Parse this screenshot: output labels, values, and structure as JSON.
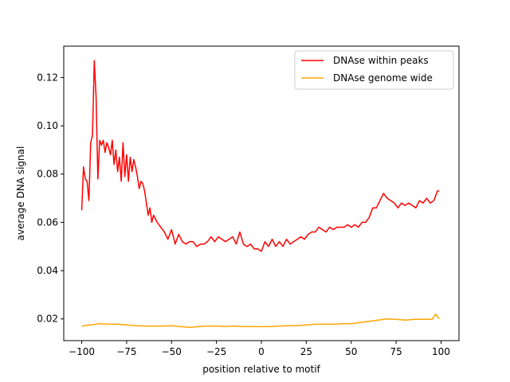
{
  "chart_data": {
    "type": "line",
    "xlabel": "position relative to motif",
    "ylabel": "average DNA signal",
    "xlim": [
      -110,
      110
    ],
    "ylim": [
      0.011,
      0.133
    ],
    "xticks": [
      -100,
      -75,
      -50,
      -25,
      0,
      25,
      50,
      75,
      100
    ],
    "xtick_labels": [
      "−100",
      "−75",
      "−50",
      "−25",
      "0",
      "25",
      "50",
      "75",
      "100"
    ],
    "yticks": [
      0.02,
      0.04,
      0.06,
      0.08,
      0.1,
      0.12
    ],
    "ytick_labels": [
      "0.02",
      "0.04",
      "0.06",
      "0.08",
      "0.10",
      "0.12"
    ],
    "legend_position": "top-right",
    "grid": false,
    "series": [
      {
        "name": "DNAse within peaks",
        "color": "#ff0000",
        "x": [
          -100,
          -99,
          -98,
          -97,
          -96,
          -95,
          -94,
          -93,
          -92,
          -91,
          -90,
          -89,
          -88,
          -87,
          -86,
          -85,
          -84,
          -83,
          -82,
          -81,
          -80,
          -79,
          -78,
          -77,
          -76,
          -75,
          -74,
          -73,
          -72,
          -71,
          -70,
          -69,
          -68,
          -67,
          -66,
          -65,
          -64,
          -63,
          -62,
          -61,
          -60,
          -58,
          -56,
          -54,
          -52,
          -50,
          -48,
          -46,
          -44,
          -42,
          -40,
          -38,
          -36,
          -34,
          -32,
          -30,
          -28,
          -26,
          -24,
          -22,
          -20,
          -18,
          -16,
          -14,
          -12,
          -10,
          -8,
          -6,
          -4,
          -2,
          0,
          2,
          4,
          6,
          8,
          10,
          12,
          14,
          16,
          18,
          20,
          22,
          24,
          26,
          28,
          30,
          32,
          34,
          36,
          38,
          40,
          42,
          44,
          46,
          48,
          50,
          52,
          54,
          56,
          58,
          60,
          62,
          64,
          66,
          68,
          70,
          72,
          74,
          76,
          78,
          80,
          82,
          84,
          86,
          88,
          90,
          92,
          94,
          96,
          98,
          99
        ],
        "y": [
          0.065,
          0.083,
          0.078,
          0.077,
          0.069,
          0.093,
          0.096,
          0.127,
          0.112,
          0.078,
          0.094,
          0.092,
          0.094,
          0.089,
          0.093,
          0.091,
          0.088,
          0.094,
          0.084,
          0.09,
          0.081,
          0.087,
          0.077,
          0.093,
          0.079,
          0.088,
          0.077,
          0.087,
          0.081,
          0.086,
          0.083,
          0.079,
          0.074,
          0.077,
          0.076,
          0.073,
          0.068,
          0.063,
          0.066,
          0.06,
          0.063,
          0.06,
          0.058,
          0.056,
          0.053,
          0.057,
          0.051,
          0.055,
          0.052,
          0.051,
          0.052,
          0.052,
          0.05,
          0.051,
          0.051,
          0.052,
          0.054,
          0.052,
          0.054,
          0.053,
          0.052,
          0.053,
          0.054,
          0.051,
          0.056,
          0.051,
          0.05,
          0.051,
          0.049,
          0.049,
          0.048,
          0.052,
          0.05,
          0.053,
          0.05,
          0.052,
          0.05,
          0.053,
          0.051,
          0.052,
          0.053,
          0.054,
          0.053,
          0.055,
          0.056,
          0.056,
          0.058,
          0.057,
          0.056,
          0.058,
          0.057,
          0.058,
          0.058,
          0.058,
          0.059,
          0.058,
          0.059,
          0.058,
          0.06,
          0.06,
          0.062,
          0.066,
          0.066,
          0.069,
          0.072,
          0.07,
          0.069,
          0.068,
          0.066,
          0.068,
          0.067,
          0.068,
          0.067,
          0.066,
          0.069,
          0.068,
          0.07,
          0.068,
          0.069,
          0.073,
          0.073
        ]
      },
      {
        "name": "DNAse genome wide",
        "color": "#ffa500",
        "x": [
          -100,
          -95,
          -90,
          -85,
          -80,
          -75,
          -70,
          -65,
          -60,
          -55,
          -50,
          -45,
          -40,
          -35,
          -30,
          -25,
          -20,
          -15,
          -10,
          -5,
          0,
          5,
          10,
          15,
          20,
          25,
          30,
          35,
          40,
          45,
          50,
          55,
          60,
          65,
          70,
          75,
          80,
          85,
          90,
          95,
          97,
          99
        ],
        "y": [
          0.017,
          0.0175,
          0.018,
          0.0178,
          0.0178,
          0.0175,
          0.0172,
          0.017,
          0.017,
          0.017,
          0.0172,
          0.0168,
          0.0165,
          0.0168,
          0.017,
          0.017,
          0.0168,
          0.017,
          0.0168,
          0.0168,
          0.0168,
          0.0168,
          0.017,
          0.0172,
          0.0172,
          0.0175,
          0.0178,
          0.0178,
          0.0178,
          0.018,
          0.018,
          0.0185,
          0.019,
          0.0195,
          0.02,
          0.0198,
          0.0195,
          0.0198,
          0.0198,
          0.0198,
          0.022,
          0.02
        ]
      }
    ]
  }
}
